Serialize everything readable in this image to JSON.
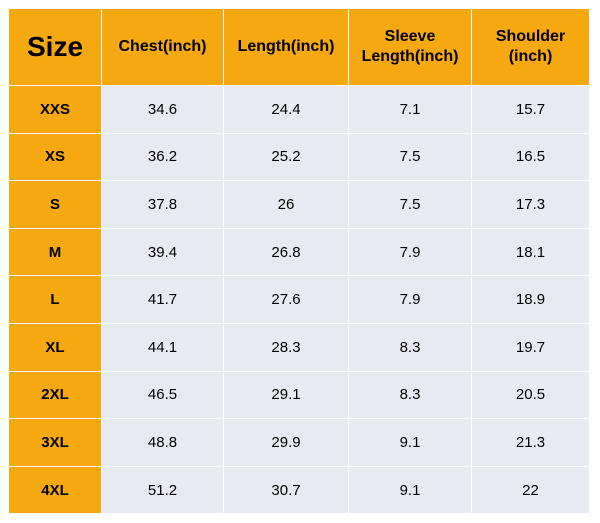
{
  "table": {
    "headers": {
      "size": "Size",
      "chest": "Chest(inch)",
      "length": "Length(inch)",
      "sleeve_line1": "Sleeve",
      "sleeve_line2": "Length(inch)",
      "shoulder_line1": "Shoulder",
      "shoulder_line2": "(inch)"
    },
    "rows": [
      {
        "size": "XXS",
        "chest": "34.6",
        "length": "24.4",
        "sleeve": "7.1",
        "shoulder": "15.7"
      },
      {
        "size": "XS",
        "chest": "36.2",
        "length": "25.2",
        "sleeve": "7.5",
        "shoulder": "16.5"
      },
      {
        "size": "S",
        "chest": "37.8",
        "length": "26",
        "sleeve": "7.5",
        "shoulder": "17.3"
      },
      {
        "size": "M",
        "chest": "39.4",
        "length": "26.8",
        "sleeve": "7.9",
        "shoulder": "18.1"
      },
      {
        "size": "L",
        "chest": "41.7",
        "length": "27.6",
        "sleeve": "7.9",
        "shoulder": "18.9"
      },
      {
        "size": "XL",
        "chest": "44.1",
        "length": "28.3",
        "sleeve": "8.3",
        "shoulder": "19.7"
      },
      {
        "size": "2XL",
        "chest": "46.5",
        "length": "29.1",
        "sleeve": "8.3",
        "shoulder": "20.5"
      },
      {
        "size": "3XL",
        "chest": "48.8",
        "length": "29.9",
        "sleeve": "9.1",
        "shoulder": "21.3"
      },
      {
        "size": "4XL",
        "chest": "51.2",
        "length": "30.7",
        "sleeve": "9.1",
        "shoulder": "22"
      }
    ]
  },
  "colors": {
    "header_bg": "#f5a810",
    "cell_bg": "#e7eaf0",
    "border": "#ffffff"
  }
}
